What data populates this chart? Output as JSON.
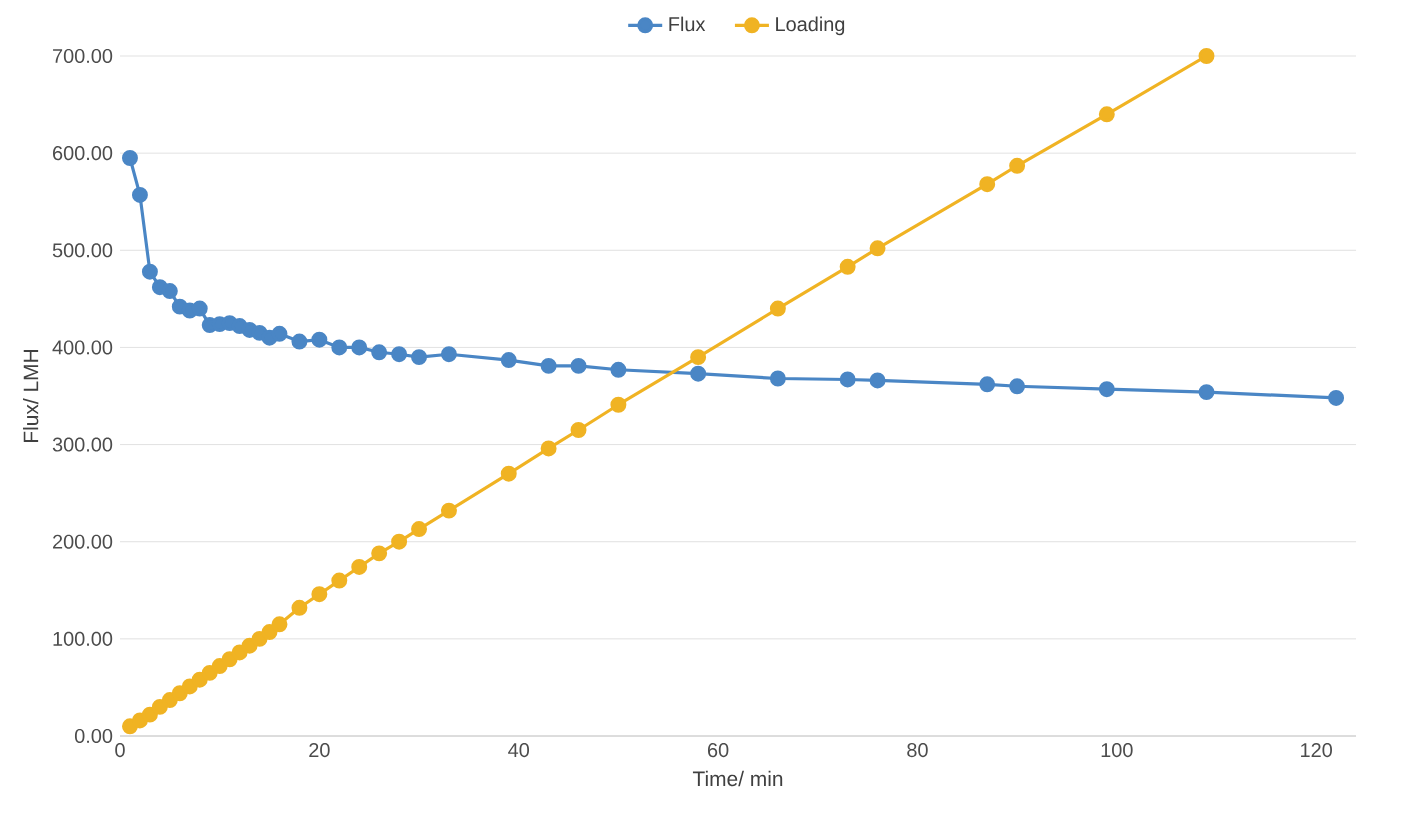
{
  "chart_data": {
    "type": "line",
    "xlabel": "Time/ min",
    "ylabel": "Flux/ LMH",
    "xlim": [
      0,
      124
    ],
    "xticks": [
      0,
      20,
      40,
      60,
      80,
      100,
      120
    ],
    "ylim": [
      0,
      700
    ],
    "yticks": [
      {
        "value": 0,
        "label": "0.00"
      },
      {
        "value": 100,
        "label": "100.00"
      },
      {
        "value": 200,
        "label": "200.00"
      },
      {
        "value": 300,
        "label": "300.00"
      },
      {
        "value": 400,
        "label": "400.00"
      },
      {
        "value": 500,
        "label": "500.00"
      },
      {
        "value": 600,
        "label": "600.00"
      },
      {
        "value": 700,
        "label": "700.00"
      }
    ],
    "grid": "y",
    "legend": "top",
    "marker": "circle",
    "line_style": "solid",
    "series": [
      {
        "name": "Flux",
        "color": "#4a86c5",
        "x": [
          1,
          2,
          3,
          4,
          5,
          6,
          7,
          8,
          9,
          10,
          11,
          12,
          13,
          14,
          15,
          16,
          18,
          20,
          22,
          24,
          26,
          28,
          30,
          33,
          39,
          43,
          46,
          50,
          58,
          66,
          73,
          76,
          87,
          90,
          99,
          109,
          122
        ],
        "values": [
          595,
          557,
          478,
          462,
          458,
          442,
          438,
          440,
          423,
          424,
          425,
          422,
          418,
          415,
          410,
          414,
          406,
          408,
          400,
          400,
          395,
          393,
          390,
          393,
          387,
          381,
          381,
          377,
          373,
          368,
          367,
          366,
          362,
          360,
          357,
          354,
          348
        ]
      },
      {
        "name": "Loading",
        "color": "#f0b323",
        "x": [
          1,
          2,
          3,
          4,
          5,
          6,
          7,
          8,
          9,
          10,
          11,
          12,
          13,
          14,
          15,
          16,
          18,
          20,
          22,
          24,
          26,
          28,
          30,
          33,
          39,
          43,
          46,
          50,
          58,
          66,
          73,
          76,
          87,
          90,
          99,
          109
        ],
        "values": [
          10,
          16,
          22,
          30,
          37,
          44,
          51,
          58,
          65,
          72,
          79,
          86,
          93,
          100,
          107,
          115,
          132,
          146,
          160,
          174,
          188,
          200,
          213,
          232,
          270,
          296,
          315,
          341,
          390,
          440,
          483,
          502,
          568,
          587,
          640,
          700
        ]
      }
    ]
  }
}
